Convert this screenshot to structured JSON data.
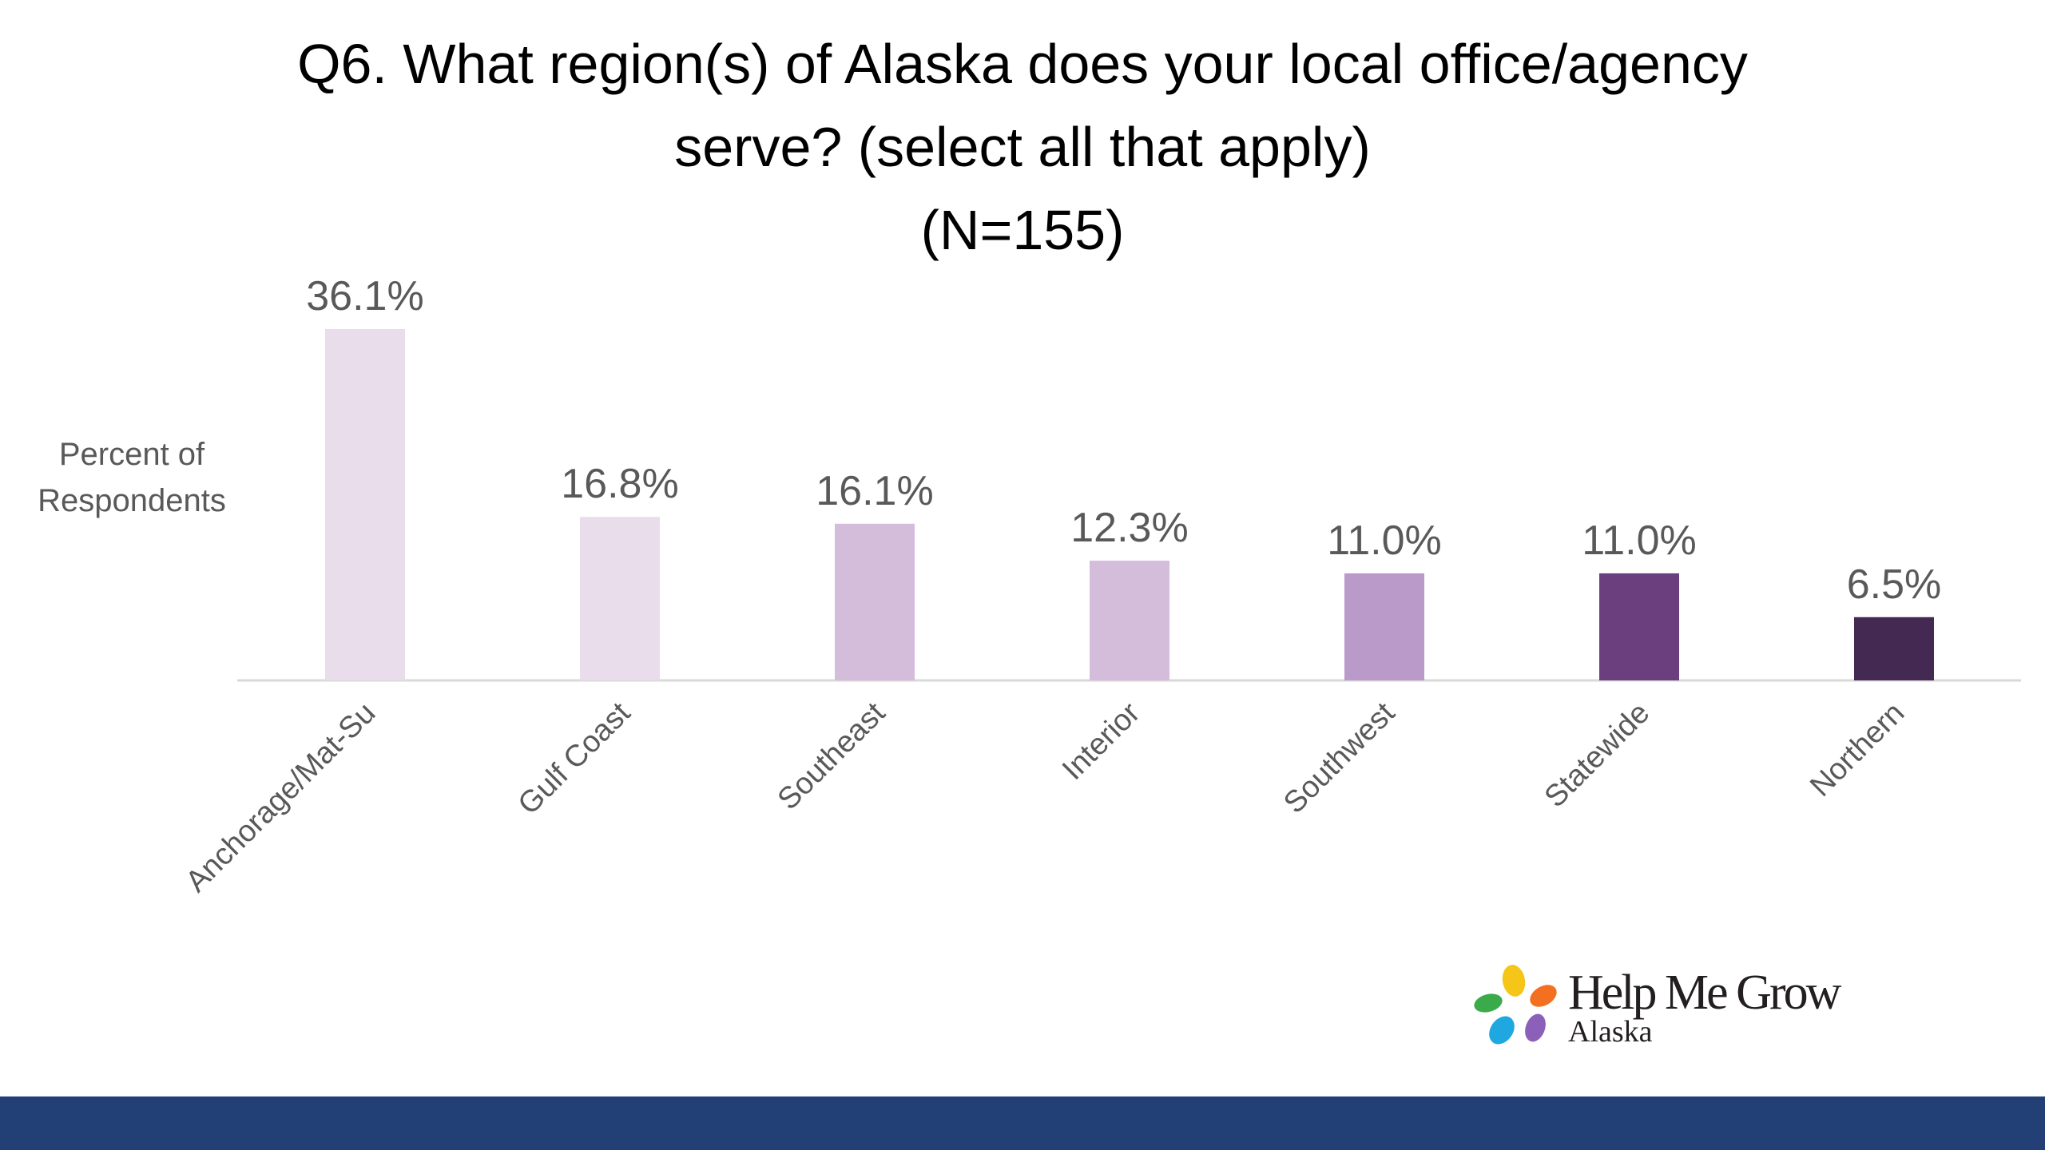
{
  "chart_data": {
    "type": "bar",
    "title": [
      "Q6. What region(s) of Alaska does your local office/agency",
      "serve? (select all that apply)",
      "(N=155)"
    ],
    "ylabel": [
      "Percent of",
      "Respondents"
    ],
    "xlabel": "",
    "categories": [
      "Anchorage/Mat-Su",
      "Gulf Coast",
      "Southeast",
      "Interior",
      "Southwest",
      "Statewide",
      "Northern"
    ],
    "values": [
      36.1,
      16.8,
      16.1,
      12.3,
      11.0,
      11.0,
      6.5
    ],
    "value_labels": [
      "36.1%",
      "16.8%",
      "16.1%",
      "12.3%",
      "11.0%",
      "11.0%",
      "6.5%"
    ],
    "bar_colors": [
      "#e9ddec",
      "#e9ddec",
      "#d4bcdb",
      "#d4bcdb",
      "#b99ac9",
      "#6b3e7e",
      "#442a52"
    ],
    "ylim": [
      0,
      36.1
    ],
    "grid": false,
    "legend": "none"
  },
  "logo": {
    "line1": "Help Me Grow",
    "line2": "Alaska",
    "petal_colors": [
      "#f5c518",
      "#f37021",
      "#8c5fb8",
      "#1fa8e0",
      "#3aaa4a"
    ]
  },
  "colors": {
    "footer_bar": "#223f76",
    "axis_line": "#d9d9d9",
    "label_text": "#595959"
  }
}
